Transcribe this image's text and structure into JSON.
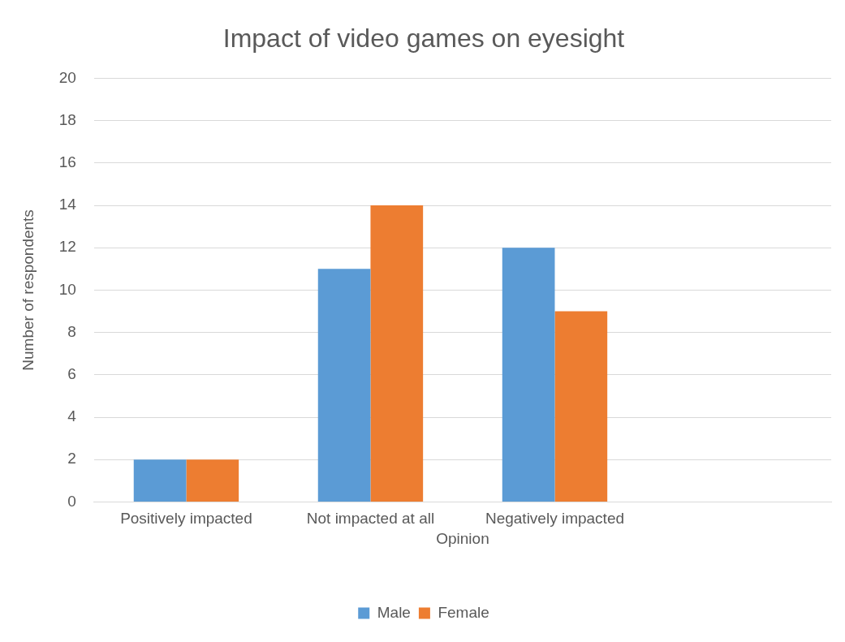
{
  "chart_data": {
    "type": "bar",
    "title": "Impact of video games on eyesight",
    "xlabel": "Opinion",
    "ylabel": "Number of respondents",
    "categories": [
      "Positively impacted",
      "Not impacted at all",
      "Negatively impacted",
      null
    ],
    "series": [
      {
        "name": "Male",
        "color": "#5b9bd5",
        "values": [
          2,
          11,
          12,
          null
        ]
      },
      {
        "name": "Female",
        "color": "#ed7d31",
        "values": [
          2,
          14,
          9,
          null
        ]
      }
    ],
    "ylim": [
      0,
      20
    ],
    "yticks": [
      0,
      2,
      4,
      6,
      8,
      10,
      12,
      14,
      16,
      18,
      20
    ],
    "grid": "y",
    "legend": "bottom"
  }
}
